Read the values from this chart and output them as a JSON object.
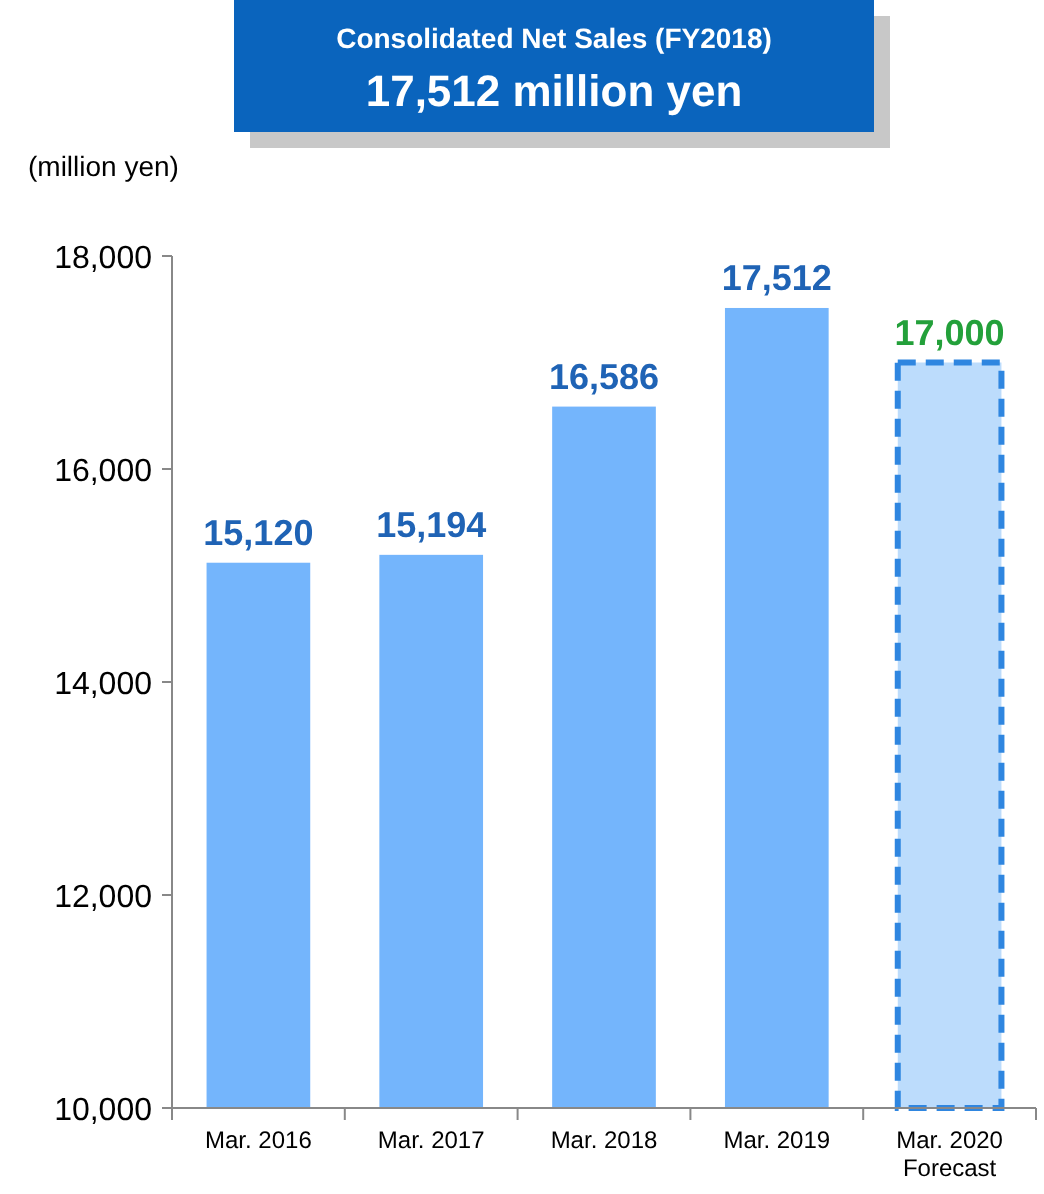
{
  "chart_data": {
    "type": "bar",
    "title": "Consolidated Net Sales (FY2018)",
    "subtitle": "17,512 million yen",
    "ylabel": "(million yen)",
    "categories": [
      "Mar. 2016",
      "Mar. 2017",
      "Mar. 2018",
      "Mar. 2019",
      "Mar. 2020\nForecast"
    ],
    "series": [
      {
        "color": "#74b5fc",
        "values": [
          15120,
          15194,
          16586,
          17512,
          null
        ],
        "value_labels": [
          "15,120",
          "15,194",
          "16,586",
          "17,512",
          null
        ]
      },
      {
        "color": "#bcdcfc",
        "line_style": "dashed",
        "values": [
          null,
          null,
          null,
          null,
          17000
        ],
        "value_labels": [
          null,
          null,
          null,
          null,
          "17,000"
        ]
      }
    ],
    "ylim": [
      10000,
      18000
    ],
    "yticks": [
      {
        "value": 10000,
        "label": "10,000"
      },
      {
        "value": 12000,
        "label": "12,000"
      },
      {
        "value": 14000,
        "label": "14,000"
      },
      {
        "value": 16000,
        "label": "16,000"
      },
      {
        "value": 18000,
        "label": "18,000"
      }
    ],
    "grid": false
  }
}
